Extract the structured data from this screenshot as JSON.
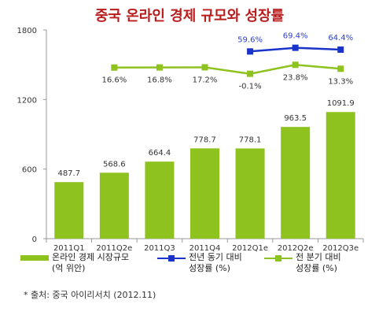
{
  "chart_data": {
    "type": "bar",
    "title": "중국 온라인 경제 규모와 성장률",
    "categories": [
      "2011Q1",
      "2011Q2e",
      "2011Q3",
      "2011Q4",
      "2012Q1e",
      "2012Q2e",
      "2012Q3e"
    ],
    "ylim": [
      0,
      1800
    ],
    "yticks": [
      0,
      600,
      1200,
      1800
    ],
    "grid": false,
    "bar_series": {
      "name": "온라인 경제 시장규모\n(억 위안)",
      "values": [
        487.7,
        568.6,
        664.4,
        778.7,
        778.1,
        963.5,
        1091.9
      ],
      "labels": [
        "487.7",
        "568.6",
        "664.4",
        "778.7",
        "778.1",
        "963.5",
        "1091.9"
      ],
      "color": "#8dc21f"
    },
    "line_series": [
      {
        "name": "전년 동기 대비\n성장률 (%)",
        "values": [
          null,
          null,
          null,
          null,
          59.6,
          69.4,
          64.4
        ],
        "labels": [
          null,
          null,
          null,
          null,
          "59.6%",
          "69.4%",
          "64.4%"
        ],
        "color": "#1a33c9",
        "label_color": "#2a3fd0"
      },
      {
        "name": "전 분기 대비\n성장률 (%)",
        "values": [
          16.6,
          16.8,
          17.2,
          -0.1,
          23.8,
          13.3
        ],
        "labels": [
          "16.6%",
          "16.8%",
          "17.2%",
          "-0.1%",
          "23.8%",
          "13.3%"
        ],
        "category_index": [
          1,
          2,
          3,
          4,
          5,
          6
        ],
        "color": "#8dc21f",
        "label_color": "#333333"
      }
    ],
    "legend_position": "bottom"
  },
  "source": "* 출처: 중국 아이리서치 (2012.11)"
}
